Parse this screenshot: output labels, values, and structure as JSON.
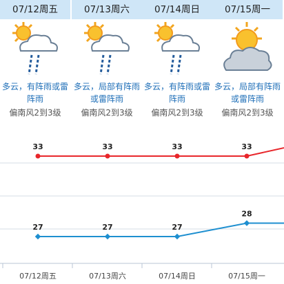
{
  "days": [
    {
      "date": "07/12周五",
      "icon": "partly-cloudy-thunderstorm-icon",
      "desc": "多云，有阵雨或雷阵雨",
      "wind": "偏南风2到3级",
      "high": 33,
      "low": 27
    },
    {
      "date": "07/13周六",
      "icon": "partly-cloudy-thunderstorm-icon",
      "desc": "多云，局部有阵雨或雷阵雨",
      "wind": "偏南风2到3级",
      "high": 33,
      "low": 27
    },
    {
      "date": "07/14周日",
      "icon": "partly-cloudy-thunderstorm-icon",
      "desc": "多云，有阵雨或雷阵雨",
      "wind": "偏南风2到3级",
      "high": 33,
      "low": 27
    },
    {
      "date": "07/15周一",
      "icon": "partly-cloudy-icon",
      "desc": "多云，局部有阵雨或雷阵雨",
      "wind": "偏南风2到3级",
      "high": 33,
      "low": 28
    }
  ],
  "chart_data": {
    "type": "line",
    "categories": [
      "07/12周五",
      "07/13周六",
      "07/14周日",
      "07/15周一"
    ],
    "series": [
      {
        "values": [
          33,
          33,
          33,
          33
        ],
        "color": "#e8262b"
      },
      {
        "values": [
          27,
          27,
          27,
          28
        ],
        "color": "#1e8fd0"
      }
    ],
    "grid": true
  }
}
